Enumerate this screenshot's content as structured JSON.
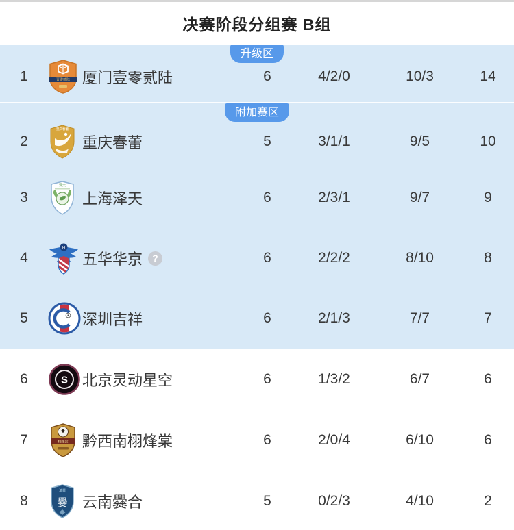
{
  "title": "决赛阶段分组赛 B组",
  "info_icon": "?",
  "colors": {
    "accent_blue": "#5799EA",
    "zone_background": "#D8E9F7"
  },
  "zones": [
    {
      "label": "升级区",
      "highlighted": true,
      "rows": [
        {
          "rank": "1",
          "team": "厦门壹零贰陆",
          "played": "6",
          "record": "4/2/0",
          "goals": "10/3",
          "points": "14",
          "logo": "xiamen-1026-crest"
        }
      ]
    },
    {
      "label": "附加赛区",
      "highlighted": true,
      "rows": [
        {
          "rank": "2",
          "team": "重庆春蕾",
          "played": "5",
          "record": "3/1/1",
          "goals": "9/5",
          "points": "10",
          "logo": "chongqing-chunlei-crest"
        },
        {
          "rank": "3",
          "team": "上海泽天",
          "played": "6",
          "record": "2/3/1",
          "goals": "9/7",
          "points": "9",
          "logo": "shanghai-zetian-crest"
        },
        {
          "rank": "4",
          "team": "五华华京",
          "played": "6",
          "record": "2/2/2",
          "goals": "8/10",
          "points": "8",
          "logo": "wuhua-huajing-crest",
          "info_icon": true
        },
        {
          "rank": "5",
          "team": "深圳吉祥",
          "played": "6",
          "record": "2/1/3",
          "goals": "7/7",
          "points": "7",
          "logo": "shenzhen-jixiang-crest"
        }
      ]
    },
    {
      "label": "",
      "highlighted": false,
      "rows": [
        {
          "rank": "6",
          "team": "北京灵动星空",
          "played": "6",
          "record": "1/3/2",
          "goals": "6/7",
          "points": "6",
          "logo": "beijing-lingdong-crest"
        },
        {
          "rank": "7",
          "team": "黔西南栩烽棠",
          "played": "6",
          "record": "2/0/4",
          "goals": "6/10",
          "points": "6",
          "logo": "qianxinan-crest"
        },
        {
          "rank": "8",
          "team": "云南爨合",
          "played": "5",
          "record": "0/2/3",
          "goals": "4/10",
          "points": "2",
          "logo": "yunnan-cuanhe-crest"
        }
      ]
    }
  ]
}
